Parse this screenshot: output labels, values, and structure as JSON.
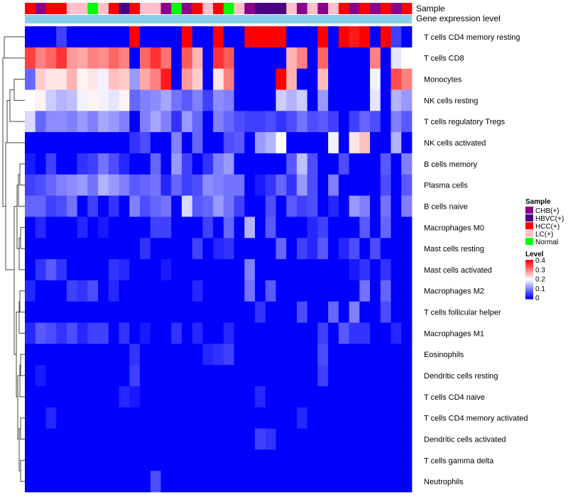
{
  "chart_data": {
    "type": "heatmap",
    "title": "",
    "annotation_tracks": [
      "Sample",
      "Gene expression level"
    ],
    "rows": [
      "T cells CD4 memory resting",
      "T cells CD8",
      "Monocytes",
      "NK cells resting",
      "T cells regulatory  Tregs",
      "NK cells activated",
      "B cells memory",
      "Plasma cells",
      "B cells naive",
      "Macrophages M0",
      "Mast cells resting",
      "Mast cells activated",
      "Macrophages M2",
      "T cells follicular helper",
      "Macrophages M1",
      "Eosinophils",
      "Dendritic cells resting",
      "T cells CD4 naive",
      "T cells CD4 memory activated",
      "Dendritic cells activated",
      "T cells gamma delta",
      "Neutrophils"
    ],
    "sample_groups": [
      "HCC(+)",
      "CHB(+)",
      "HCC(+)",
      "HCC(+)",
      "LC(+)",
      "LC(+)",
      "Normal",
      "LC(+)",
      "HCC(+)",
      "HBVC(+)",
      "HCC(+)",
      "LC(+)",
      "LC(+)",
      "CHB(+)",
      "Normal",
      "CHB(+)",
      "HCC(+)",
      "LC(+)",
      "HCC(+)",
      "Normal",
      "LC(+)",
      "CHB(+)",
      "HBVC(+)",
      "HBVC(+)",
      "HBVC(+)",
      "LC(+)",
      "CHB(+)",
      "LC(+)",
      "CHB(+)",
      "LC(+)",
      "HCC(+)",
      "CHB(+)",
      "HCC(+)",
      "CHB(+)",
      "HCC(+)",
      "CHB(+)",
      "HCC(+)"
    ],
    "values": [
      [
        0.0,
        0.0,
        0.0,
        0.05,
        0.0,
        0.0,
        0.0,
        0.0,
        0.0,
        0.0,
        0.4,
        0.0,
        0.0,
        0.0,
        0.0,
        0.4,
        0.0,
        0.0,
        0.4,
        0.0,
        0.0,
        0.4,
        0.4,
        0.4,
        0.4,
        0.0,
        0.0,
        0.0,
        0.4,
        0.0,
        0.4,
        0.38,
        0.4,
        0.0,
        0.4,
        0.05,
        0.0
      ],
      [
        0.35,
        0.3,
        0.32,
        0.36,
        0.28,
        0.27,
        0.3,
        0.29,
        0.32,
        0.3,
        0.0,
        0.32,
        0.36,
        0.31,
        0.0,
        0.33,
        0.26,
        0.0,
        0.36,
        0.33,
        0.0,
        0.0,
        0.0,
        0.0,
        0.0,
        0.26,
        0.3,
        0.0,
        0.32,
        0.0,
        0.0,
        0.0,
        0.0,
        0.3,
        0.0,
        0.18,
        0.2
      ],
      [
        0.08,
        0.24,
        0.22,
        0.22,
        0.26,
        0.21,
        0.22,
        0.19,
        0.25,
        0.24,
        0.12,
        0.27,
        0.3,
        0.38,
        0.0,
        0.28,
        0.24,
        0.0,
        0.22,
        0.3,
        0.0,
        0.0,
        0.0,
        0.0,
        0.4,
        0.26,
        0.0,
        0.0,
        0.25,
        0.0,
        0.0,
        0.0,
        0.0,
        0.19,
        0.0,
        0.34,
        0.3
      ],
      [
        0.2,
        0.21,
        0.16,
        0.14,
        0.15,
        0.19,
        0.21,
        0.19,
        0.18,
        0.21,
        0.08,
        0.1,
        0.11,
        0.13,
        0.09,
        0.07,
        0.1,
        0.05,
        0.11,
        0.1,
        0.0,
        0.0,
        0.0,
        0.0,
        0.16,
        0.14,
        0.16,
        0.0,
        0.12,
        0.0,
        0.0,
        0.0,
        0.0,
        0.18,
        0.0,
        0.14,
        0.12
      ],
      [
        0.17,
        0.08,
        0.11,
        0.11,
        0.1,
        0.12,
        0.1,
        0.13,
        0.12,
        0.1,
        0.0,
        0.1,
        0.13,
        0.1,
        0.04,
        0.12,
        0.08,
        0.0,
        0.1,
        0.08,
        0.06,
        0.05,
        0.05,
        0.06,
        0.04,
        0.06,
        0.09,
        0.06,
        0.07,
        0.05,
        0.0,
        0.05,
        0.08,
        0.06,
        0.0,
        0.1,
        0.07
      ],
      [
        0.0,
        0.0,
        0.0,
        0.0,
        0.0,
        0.0,
        0.0,
        0.0,
        0.0,
        0.0,
        0.04,
        0.06,
        0.0,
        0.0,
        0.1,
        0.0,
        0.08,
        0.0,
        0.0,
        0.06,
        0.07,
        0.0,
        0.12,
        0.14,
        0.2,
        0.0,
        0.0,
        0.0,
        0.0,
        0.19,
        0.0,
        0.22,
        0.25,
        0.0,
        0.0,
        0.14,
        0.0
      ],
      [
        0.02,
        0.0,
        0.05,
        0.0,
        0.0,
        0.04,
        0.05,
        0.09,
        0.06,
        0.03,
        0.0,
        0.0,
        0.08,
        0.0,
        0.12,
        0.05,
        0.0,
        0.04,
        0.1,
        0.12,
        0.0,
        0.0,
        0.0,
        0.0,
        0.0,
        0.07,
        0.15,
        0.06,
        0.0,
        0.0,
        0.06,
        0.0,
        0.0,
        0.0,
        0.07,
        0.0,
        0.1
      ],
      [
        0.05,
        0.06,
        0.08,
        0.1,
        0.11,
        0.12,
        0.09,
        0.14,
        0.12,
        0.1,
        0.07,
        0.08,
        0.09,
        0.03,
        0.08,
        0.05,
        0.06,
        0.11,
        0.1,
        0.09,
        0.09,
        0.0,
        0.02,
        0.04,
        0.08,
        0.04,
        0.12,
        0.06,
        0.0,
        0.1,
        0.0,
        0.0,
        0.0,
        0.0,
        0.06,
        0.0,
        0.07
      ],
      [
        0.08,
        0.08,
        0.05,
        0.06,
        0.09,
        0.0,
        0.05,
        0.0,
        0.04,
        0.0,
        0.1,
        0.06,
        0.08,
        0.09,
        0.0,
        0.17,
        0.07,
        0.08,
        0.12,
        0.09,
        0.05,
        0.0,
        0.0,
        0.06,
        0.0,
        0.07,
        0.05,
        0.06,
        0.0,
        0.03,
        0.0,
        0.12,
        0.1,
        0.0,
        0.09,
        0.0,
        0.1
      ],
      [
        0.0,
        0.03,
        0.0,
        0.0,
        0.0,
        0.03,
        0.0,
        0.02,
        0.0,
        0.0,
        0.0,
        0.0,
        0.05,
        0.05,
        0.0,
        0.0,
        0.0,
        0.05,
        0.0,
        0.08,
        0.0,
        0.14,
        0.0,
        0.07,
        0.0,
        0.0,
        0.0,
        0.03,
        0.05,
        0.0,
        0.0,
        0.0,
        0.07,
        0.0,
        0.08,
        0.0,
        0.0
      ],
      [
        0.0,
        0.0,
        0.0,
        0.0,
        0.0,
        0.0,
        0.0,
        0.0,
        0.0,
        0.0,
        0.0,
        0.04,
        0.0,
        0.0,
        0.0,
        0.0,
        0.05,
        0.0,
        0.03,
        0.04,
        0.0,
        0.0,
        0.0,
        0.0,
        0.08,
        0.0,
        0.05,
        0.03,
        0.07,
        0.0,
        0.03,
        0.06,
        0.0,
        0.06,
        0.0,
        0.0,
        0.0
      ],
      [
        0.0,
        0.04,
        0.07,
        0.04,
        0.0,
        0.0,
        0.0,
        0.0,
        0.04,
        0.03,
        0.0,
        0.0,
        0.0,
        0.02,
        0.0,
        0.0,
        0.0,
        0.0,
        0.0,
        0.0,
        0.0,
        0.1,
        0.0,
        0.0,
        0.0,
        0.0,
        0.0,
        0.0,
        0.0,
        0.0,
        0.0,
        0.02,
        0.04,
        0.0,
        0.04,
        0.0,
        0.0
      ],
      [
        0.03,
        0.0,
        0.0,
        0.0,
        0.05,
        0.04,
        0.06,
        0.0,
        0.03,
        0.0,
        0.0,
        0.0,
        0.0,
        0.0,
        0.0,
        0.0,
        0.03,
        0.0,
        0.0,
        0.0,
        0.0,
        0.09,
        0.0,
        0.07,
        0.0,
        0.0,
        0.0,
        0.0,
        0.0,
        0.0,
        0.0,
        0.0,
        0.09,
        0.0,
        0.08,
        0.0,
        0.0
      ],
      [
        0.0,
        0.0,
        0.0,
        0.0,
        0.0,
        0.0,
        0.0,
        0.0,
        0.0,
        0.0,
        0.0,
        0.0,
        0.0,
        0.0,
        0.0,
        0.0,
        0.0,
        0.0,
        0.0,
        0.0,
        0.0,
        0.0,
        0.04,
        0.0,
        0.0,
        0.0,
        0.06,
        0.0,
        0.0,
        0.08,
        0.0,
        0.1,
        0.0,
        0.0,
        0.06,
        0.0,
        0.0
      ],
      [
        0.03,
        0.07,
        0.06,
        0.04,
        0.06,
        0.03,
        0.05,
        0.05,
        0.0,
        0.04,
        0.0,
        0.02,
        0.0,
        0.0,
        0.04,
        0.0,
        0.03,
        0.0,
        0.0,
        0.03,
        0.0,
        0.0,
        0.0,
        0.0,
        0.0,
        0.0,
        0.0,
        0.0,
        0.05,
        0.0,
        0.07,
        0.04,
        0.04,
        0.0,
        0.0,
        0.03,
        0.0
      ],
      [
        0.0,
        0.0,
        0.0,
        0.0,
        0.0,
        0.0,
        0.0,
        0.0,
        0.0,
        0.0,
        0.04,
        0.0,
        0.0,
        0.0,
        0.0,
        0.0,
        0.0,
        0.03,
        0.04,
        0.05,
        0.0,
        0.0,
        0.0,
        0.0,
        0.0,
        0.0,
        0.0,
        0.0,
        0.06,
        0.0,
        0.0,
        0.0,
        0.0,
        0.0,
        0.0,
        0.0,
        0.0
      ],
      [
        0.0,
        0.02,
        0.0,
        0.0,
        0.0,
        0.0,
        0.0,
        0.0,
        0.0,
        0.0,
        0.05,
        0.0,
        0.0,
        0.0,
        0.0,
        0.0,
        0.0,
        0.0,
        0.0,
        0.0,
        0.0,
        0.0,
        0.0,
        0.0,
        0.0,
        0.0,
        0.0,
        0.0,
        0.05,
        0.0,
        0.0,
        0.0,
        0.0,
        0.0,
        0.0,
        0.0,
        0.0
      ],
      [
        0.0,
        0.0,
        0.0,
        0.0,
        0.0,
        0.0,
        0.0,
        0.0,
        0.0,
        0.03,
        0.02,
        0.0,
        0.0,
        0.0,
        0.0,
        0.0,
        0.0,
        0.0,
        0.0,
        0.0,
        0.0,
        0.0,
        0.03,
        0.0,
        0.0,
        0.0,
        0.0,
        0.0,
        0.0,
        0.0,
        0.0,
        0.0,
        0.0,
        0.0,
        0.0,
        0.0,
        0.0
      ],
      [
        0.0,
        0.0,
        0.03,
        0.0,
        0.0,
        0.0,
        0.0,
        0.0,
        0.0,
        0.0,
        0.0,
        0.0,
        0.0,
        0.0,
        0.0,
        0.0,
        0.0,
        0.0,
        0.0,
        0.0,
        0.0,
        0.0,
        0.0,
        0.0,
        0.0,
        0.0,
        0.03,
        0.0,
        0.0,
        0.0,
        0.0,
        0.0,
        0.0,
        0.0,
        0.0,
        0.0,
        0.0
      ],
      [
        0.0,
        0.0,
        0.0,
        0.0,
        0.0,
        0.0,
        0.0,
        0.0,
        0.0,
        0.0,
        0.0,
        0.0,
        0.0,
        0.0,
        0.0,
        0.0,
        0.0,
        0.0,
        0.0,
        0.0,
        0.0,
        0.0,
        0.05,
        0.04,
        0.0,
        0.0,
        0.0,
        0.0,
        0.0,
        0.0,
        0.0,
        0.0,
        0.0,
        0.0,
        0.0,
        0.0,
        0.0
      ],
      [
        0.0,
        0.0,
        0.0,
        0.0,
        0.0,
        0.0,
        0.0,
        0.0,
        0.0,
        0.0,
        0.0,
        0.0,
        0.0,
        0.0,
        0.0,
        0.0,
        0.0,
        0.0,
        0.0,
        0.0,
        0.0,
        0.0,
        0.0,
        0.0,
        0.0,
        0.0,
        0.0,
        0.0,
        0.0,
        0.0,
        0.0,
        0.0,
        0.0,
        0.0,
        0.0,
        0.0,
        0.0
      ],
      [
        0.0,
        0.0,
        0.0,
        0.0,
        0.0,
        0.0,
        0.0,
        0.0,
        0.0,
        0.0,
        0.0,
        0.0,
        0.06,
        0.0,
        0.0,
        0.0,
        0.0,
        0.0,
        0.0,
        0.0,
        0.0,
        0.0,
        0.0,
        0.0,
        0.0,
        0.0,
        0.0,
        0.0,
        0.0,
        0.0,
        0.0,
        0.0,
        0.0,
        0.0,
        0.0,
        0.0,
        0.0
      ]
    ],
    "color_scale": {
      "min": 0,
      "max": 0.4,
      "low": "#0000ff",
      "mid": "#ffffff",
      "high": "#ff0000",
      "mid_value": 0.2
    },
    "legend_sample": {
      "title": "Sample",
      "items": [
        {
          "label": "CHB(+)",
          "color": "#8b008b"
        },
        {
          "label": "HBVC(+)",
          "color": "#4b0082"
        },
        {
          "label": "HCC(+)",
          "color": "#ff0000"
        },
        {
          "label": "LC(+)",
          "color": "#ffc0cb"
        },
        {
          "label": "Normal",
          "color": "#00ff00"
        }
      ]
    },
    "legend_level": {
      "title": "Level",
      "ticks": [
        "0.4",
        "0.3",
        "0.2",
        "0.1",
        "0"
      ]
    },
    "expression_track_color": "#87ceeb"
  }
}
